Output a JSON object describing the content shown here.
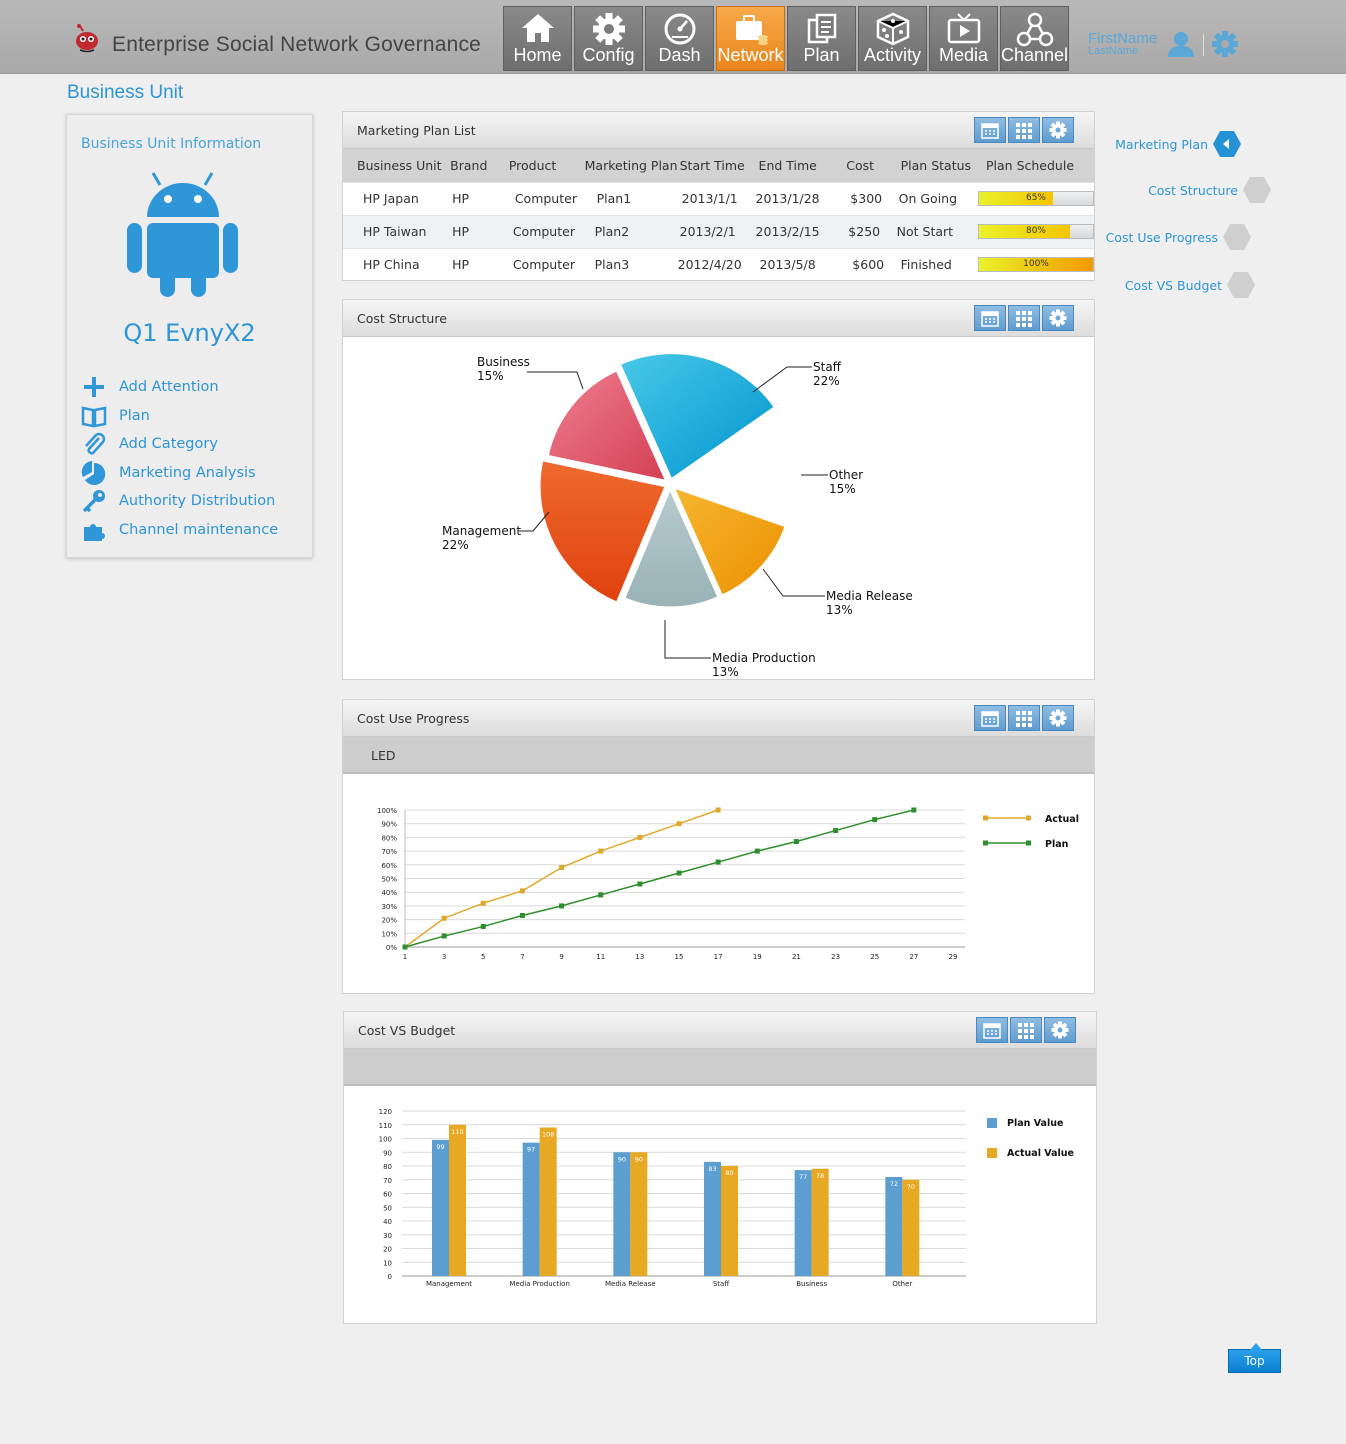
{
  "header": {
    "app_title": "Enterprise Social Network Governance",
    "nav": [
      {
        "label": "Home",
        "icon": "home-icon"
      },
      {
        "label": "Config",
        "icon": "config-gear-icon"
      },
      {
        "label": "Dash",
        "icon": "dashboard-gauge-icon"
      },
      {
        "label": "Network",
        "icon": "network-briefcase-icon",
        "active": true
      },
      {
        "label": "Plan",
        "icon": "plan-documents-icon"
      },
      {
        "label": "Activity",
        "icon": "activity-dice-icon"
      },
      {
        "label": "Media",
        "icon": "media-tv-icon"
      },
      {
        "label": "Channel",
        "icon": "channel-nodes-icon"
      }
    ],
    "user_first": "FirstName",
    "user_last": "LastName"
  },
  "page_title": "Business Unit",
  "left_panel": {
    "heading": "Business Unit Information",
    "unit_name": "Q1 EvnyX2",
    "menu": [
      {
        "label": "Add Attention",
        "icon": "plus-icon"
      },
      {
        "label": "Plan",
        "icon": "book-icon"
      },
      {
        "label": "Add Category",
        "icon": "paperclip-icon"
      },
      {
        "label": "Marketing Analysis",
        "icon": "pie-chart-icon"
      },
      {
        "label": "Authority Distribution",
        "icon": "key-icon"
      },
      {
        "label": "Channel maintenance",
        "icon": "puzzle-icon"
      }
    ]
  },
  "marketing_plan": {
    "title": "Marketing Plan List",
    "columns": [
      "Business Unit",
      "Brand",
      "Product",
      "Marketing Plan",
      "Start Time",
      "End Time",
      "Cost",
      "Plan Status",
      "Plan Schedule"
    ],
    "rows": [
      {
        "unit": "HP Japan",
        "brand": "HP",
        "product": "Computer",
        "plan": "Plan1",
        "start": "2013/1/1",
        "end": "2013/1/28",
        "cost": "$300",
        "status": "On Going",
        "schedule": 0.65,
        "schedule_label": "65%"
      },
      {
        "unit": "HP Taiwan",
        "brand": "HP",
        "product": "Computer",
        "plan": "Plan2",
        "start": "2013/2/1",
        "end": "2013/2/15",
        "cost": "$250",
        "status": "Not Start",
        "schedule": 0.8,
        "schedule_label": "80%"
      },
      {
        "unit": "HP China",
        "brand": "HP",
        "product": "Computer",
        "plan": "Plan3",
        "start": "2012/4/20",
        "end": "2013/5/8",
        "cost": "$600",
        "status": "Finished",
        "schedule": 1.0,
        "schedule_label": "100%"
      }
    ]
  },
  "cost_structure": {
    "title": "Cost Structure"
  },
  "cost_use": {
    "title": "Cost Use Progress",
    "subtitle": "LED"
  },
  "cost_vs_budget": {
    "title": "Cost VS Budget"
  },
  "right_nav": [
    {
      "label": "Marketing Plan",
      "active": true
    },
    {
      "label": "Cost Structure"
    },
    {
      "label": "Cost Use Progress"
    },
    {
      "label": "Cost VS Budget"
    }
  ],
  "top_button": "Top",
  "colors": {
    "accent": "#2e95d3",
    "active_nav": "#f39a2a",
    "actual": "#e0a82a",
    "plan": "#2e8f2e",
    "plan_value": "#5b9ecf",
    "actual_value": "#e7a823"
  },
  "chart_data": [
    {
      "type": "pie",
      "labels": [
        "Staff",
        "Other",
        "Media Release",
        "Media Production",
        "Management",
        "Business"
      ],
      "values": [
        22,
        15,
        13,
        13,
        22,
        15
      ],
      "value_labels": [
        "22%",
        "15%",
        "13%",
        "13%",
        "22%",
        "15%"
      ],
      "colors": [
        "#1fb0db",
        "#ffffff",
        "#f0a012",
        "#a7bfc3",
        "#e8501d",
        "#e2566b"
      ]
    },
    {
      "type": "line",
      "x": [
        1,
        3,
        5,
        7,
        9,
        11,
        13,
        15,
        17,
        19,
        21,
        23,
        25,
        27,
        29
      ],
      "ylim": [
        0,
        100
      ],
      "y_ticks": [
        "0%",
        "10%",
        "20%",
        "30%",
        "40%",
        "50%",
        "60%",
        "70%",
        "80%",
        "90%",
        "100%"
      ],
      "series": [
        {
          "name": "Actual",
          "x": [
            1,
            3,
            5,
            7,
            9,
            11,
            13,
            15,
            17
          ],
          "values": [
            0,
            21,
            32,
            41,
            58,
            70,
            80,
            90,
            100
          ]
        },
        {
          "name": "Plan",
          "x": [
            1,
            3,
            5,
            7,
            9,
            11,
            13,
            15,
            17,
            19,
            21,
            23,
            25,
            27
          ],
          "values": [
            0,
            8,
            15,
            23,
            30,
            38,
            46,
            54,
            62,
            70,
            77,
            85,
            93,
            100
          ]
        }
      ]
    },
    {
      "type": "bar",
      "categories": [
        "Management",
        "Media Production",
        "Media Release",
        "Staff",
        "Business",
        "Other"
      ],
      "ylim": [
        0,
        120
      ],
      "y_ticks": [
        0,
        10,
        20,
        30,
        40,
        50,
        60,
        70,
        80,
        90,
        100,
        110,
        120
      ],
      "series": [
        {
          "name": "Plan Value",
          "values": [
            99,
            97,
            90,
            83,
            77,
            72
          ]
        },
        {
          "name": "Actual Value",
          "values": [
            110,
            108,
            90,
            80,
            78,
            70
          ]
        }
      ]
    }
  ]
}
